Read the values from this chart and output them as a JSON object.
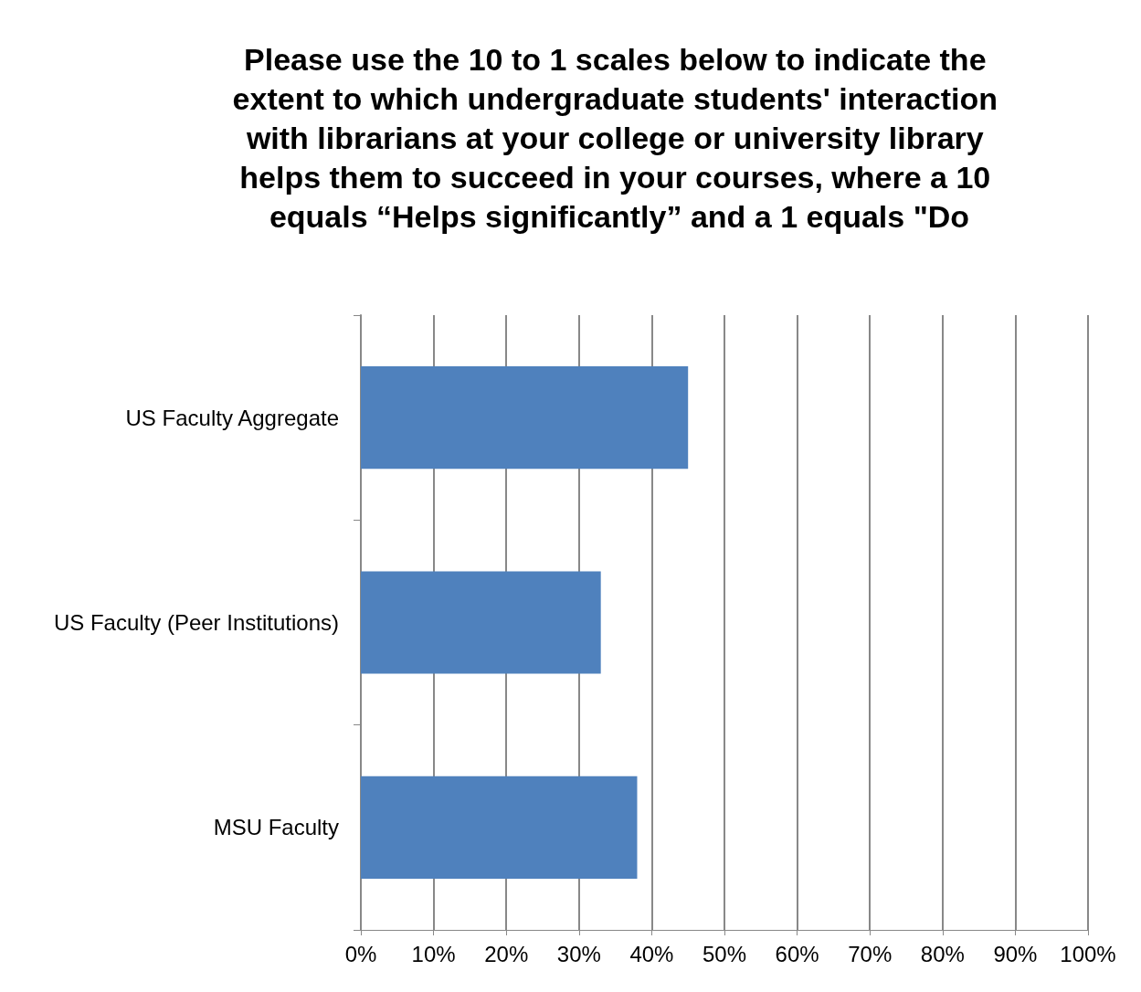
{
  "chart_data": {
    "type": "bar",
    "orientation": "horizontal",
    "title": "Please use the 10 to 1 scales below to indicate the extent to which undergraduate students' interaction with librarians at your college or university library helps them to succeed in your courses, where a 10 equals “Helps significantly” and a 1 equals \"Do",
    "categories": [
      "US Faculty Aggregate",
      "US Faculty (Peer Institutions)",
      "MSU Faculty"
    ],
    "values": [
      45,
      33,
      38
    ],
    "color": "#4f81bd",
    "xlim": [
      0,
      100
    ],
    "xticks": [
      {
        "value": 0,
        "label": "0%"
      },
      {
        "value": 10,
        "label": "10%"
      },
      {
        "value": 20,
        "label": "20%"
      },
      {
        "value": 30,
        "label": "30%"
      },
      {
        "value": 40,
        "label": "40%"
      },
      {
        "value": 50,
        "label": "50%"
      },
      {
        "value": 60,
        "label": "60%"
      },
      {
        "value": 70,
        "label": "70%"
      },
      {
        "value": 80,
        "label": "80%"
      },
      {
        "value": 90,
        "label": "90%"
      },
      {
        "value": 100,
        "label": "100%"
      }
    ],
    "grid": "x"
  }
}
